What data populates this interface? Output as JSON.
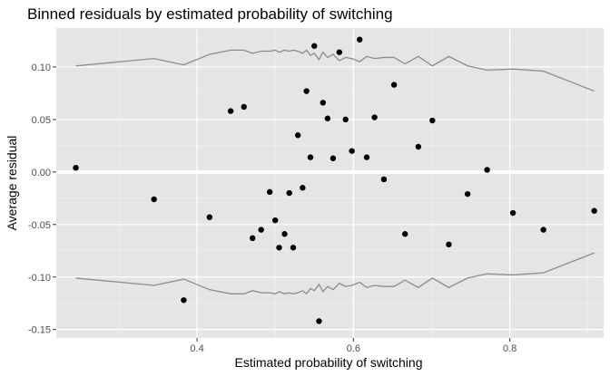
{
  "chart_data": {
    "type": "scatter",
    "title": "Binned residuals by estimated probability of switching",
    "xlabel": "Estimated probability of switching",
    "ylabel": "Average residual",
    "xlim": [
      0.22,
      0.92
    ],
    "ylim": [
      -0.158,
      0.137
    ],
    "x_ticks": [
      0.4,
      0.6,
      0.8
    ],
    "x_tick_labels": [
      "0.4",
      "0.6",
      "0.8"
    ],
    "y_ticks": [
      -0.15,
      -0.1,
      -0.05,
      0.0,
      0.05,
      0.1
    ],
    "y_tick_labels": [
      "-0.15",
      "-0.10",
      "-0.05",
      "0.00",
      "0.05",
      "0.10"
    ],
    "grid": true,
    "reference_line_y": 0.0,
    "colors": {
      "panel": "#e5e5e5",
      "grid_major": "#ffffff",
      "grid_minor": "#f2f2f2",
      "points": "#000000",
      "bounds": "#8c8c8c"
    },
    "points": [
      {
        "x": 0.245,
        "y": 0.004
      },
      {
        "x": 0.345,
        "y": -0.026
      },
      {
        "x": 0.383,
        "y": -0.122
      },
      {
        "x": 0.416,
        "y": -0.043
      },
      {
        "x": 0.443,
        "y": 0.058
      },
      {
        "x": 0.46,
        "y": 0.062
      },
      {
        "x": 0.471,
        "y": -0.063
      },
      {
        "x": 0.482,
        "y": -0.055
      },
      {
        "x": 0.493,
        "y": -0.019
      },
      {
        "x": 0.5,
        "y": -0.046
      },
      {
        "x": 0.505,
        "y": -0.072
      },
      {
        "x": 0.512,
        "y": -0.059
      },
      {
        "x": 0.518,
        "y": -0.02
      },
      {
        "x": 0.523,
        "y": -0.072
      },
      {
        "x": 0.529,
        "y": 0.035
      },
      {
        "x": 0.535,
        "y": -0.015
      },
      {
        "x": 0.54,
        "y": 0.077
      },
      {
        "x": 0.545,
        "y": 0.014
      },
      {
        "x": 0.55,
        "y": 0.12
      },
      {
        "x": 0.556,
        "y": -0.142
      },
      {
        "x": 0.561,
        "y": 0.066
      },
      {
        "x": 0.567,
        "y": 0.051
      },
      {
        "x": 0.574,
        "y": 0.013
      },
      {
        "x": 0.582,
        "y": 0.114
      },
      {
        "x": 0.59,
        "y": 0.05
      },
      {
        "x": 0.598,
        "y": 0.02
      },
      {
        "x": 0.608,
        "y": 0.126
      },
      {
        "x": 0.617,
        "y": 0.014
      },
      {
        "x": 0.627,
        "y": 0.052
      },
      {
        "x": 0.639,
        "y": -0.007
      },
      {
        "x": 0.652,
        "y": 0.083
      },
      {
        "x": 0.666,
        "y": -0.059
      },
      {
        "x": 0.683,
        "y": 0.024
      },
      {
        "x": 0.701,
        "y": 0.049
      },
      {
        "x": 0.722,
        "y": -0.069
      },
      {
        "x": 0.746,
        "y": -0.021
      },
      {
        "x": 0.771,
        "y": 0.002
      },
      {
        "x": 0.804,
        "y": -0.039
      },
      {
        "x": 0.843,
        "y": -0.055
      },
      {
        "x": 0.908,
        "y": -0.037
      }
    ],
    "bound_line": [
      {
        "x": 0.245,
        "y": 0.101
      },
      {
        "x": 0.345,
        "y": 0.108
      },
      {
        "x": 0.383,
        "y": 0.102
      },
      {
        "x": 0.416,
        "y": 0.112
      },
      {
        "x": 0.443,
        "y": 0.116
      },
      {
        "x": 0.46,
        "y": 0.116
      },
      {
        "x": 0.471,
        "y": 0.113
      },
      {
        "x": 0.482,
        "y": 0.115
      },
      {
        "x": 0.493,
        "y": 0.115
      },
      {
        "x": 0.5,
        "y": 0.116
      },
      {
        "x": 0.505,
        "y": 0.114
      },
      {
        "x": 0.512,
        "y": 0.116
      },
      {
        "x": 0.518,
        "y": 0.115
      },
      {
        "x": 0.523,
        "y": 0.116
      },
      {
        "x": 0.529,
        "y": 0.115
      },
      {
        "x": 0.535,
        "y": 0.113
      },
      {
        "x": 0.54,
        "y": 0.116
      },
      {
        "x": 0.545,
        "y": 0.111
      },
      {
        "x": 0.55,
        "y": 0.113
      },
      {
        "x": 0.556,
        "y": 0.107
      },
      {
        "x": 0.561,
        "y": 0.114
      },
      {
        "x": 0.567,
        "y": 0.109
      },
      {
        "x": 0.574,
        "y": 0.112
      },
      {
        "x": 0.582,
        "y": 0.106
      },
      {
        "x": 0.59,
        "y": 0.109
      },
      {
        "x": 0.598,
        "y": 0.108
      },
      {
        "x": 0.608,
        "y": 0.105
      },
      {
        "x": 0.617,
        "y": 0.11
      },
      {
        "x": 0.627,
        "y": 0.108
      },
      {
        "x": 0.639,
        "y": 0.109
      },
      {
        "x": 0.652,
        "y": 0.109
      },
      {
        "x": 0.666,
        "y": 0.103
      },
      {
        "x": 0.683,
        "y": 0.11
      },
      {
        "x": 0.701,
        "y": 0.101
      },
      {
        "x": 0.722,
        "y": 0.11
      },
      {
        "x": 0.746,
        "y": 0.101
      },
      {
        "x": 0.771,
        "y": 0.097
      },
      {
        "x": 0.804,
        "y": 0.098
      },
      {
        "x": 0.843,
        "y": 0.096
      },
      {
        "x": 0.908,
        "y": 0.077
      }
    ]
  }
}
